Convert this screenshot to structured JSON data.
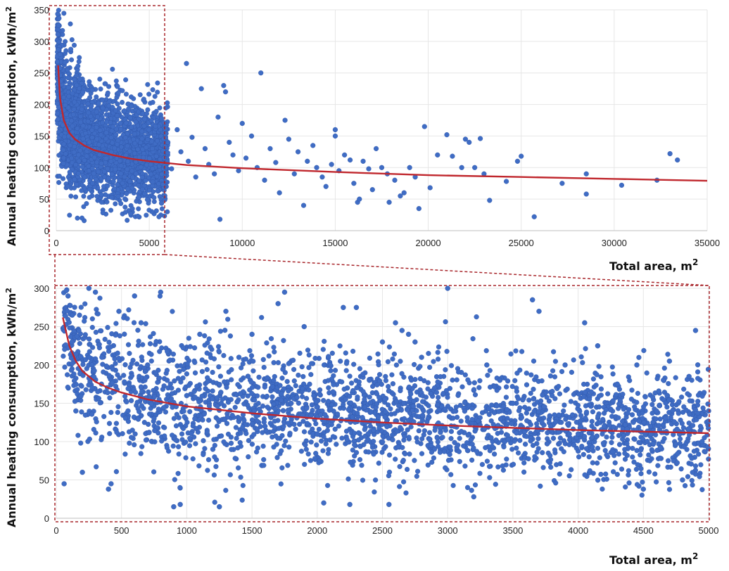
{
  "chart_data": [
    {
      "type": "scatter",
      "title": "",
      "xlabel": "Total area, m",
      "xlabel_sup": "2",
      "ylabel": "Annual heating consumption, kWh/m",
      "ylabel_sup": "2",
      "xlim": [
        0,
        35000
      ],
      "ylim": [
        0,
        350
      ],
      "xticks": [
        "0",
        "5000",
        "10000",
        "15000",
        "20000",
        "25000",
        "30000",
        "35000"
      ],
      "yticks": [
        "0",
        "50",
        "100",
        "150",
        "200",
        "250",
        "300",
        "350"
      ],
      "grid": true,
      "series": [
        {
          "kind": "points",
          "color": "#3f6cc4",
          "points": [
            [
              5800,
              115
            ],
            [
              6000,
              140
            ],
            [
              6200,
              98
            ],
            [
              6500,
              160
            ],
            [
              6700,
              125
            ],
            [
              7000,
              265
            ],
            [
              7100,
              110
            ],
            [
              7300,
              148
            ],
            [
              7500,
              85
            ],
            [
              7800,
              225
            ],
            [
              8000,
              130
            ],
            [
              8200,
              105
            ],
            [
              8500,
              90
            ],
            [
              8700,
              180
            ],
            [
              8800,
              18
            ],
            [
              9000,
              230
            ],
            [
              9100,
              220
            ],
            [
              9300,
              140
            ],
            [
              9500,
              120
            ],
            [
              9800,
              95
            ],
            [
              10000,
              170
            ],
            [
              10200,
              115
            ],
            [
              10500,
              150
            ],
            [
              10800,
              100
            ],
            [
              11000,
              250
            ],
            [
              11200,
              80
            ],
            [
              11500,
              130
            ],
            [
              11800,
              108
            ],
            [
              12000,
              60
            ],
            [
              12300,
              175
            ],
            [
              12500,
              145
            ],
            [
              12800,
              90
            ],
            [
              13000,
              125
            ],
            [
              13300,
              40
            ],
            [
              13500,
              110
            ],
            [
              13800,
              135
            ],
            [
              14000,
              100
            ],
            [
              14300,
              85
            ],
            [
              14500,
              70
            ],
            [
              14800,
              105
            ],
            [
              15000,
              160
            ],
            [
              15000,
              150
            ],
            [
              15200,
              95
            ],
            [
              15500,
              120
            ],
            [
              15800,
              112
            ],
            [
              16000,
              75
            ],
            [
              16200,
              45
            ],
            [
              16300,
              50
            ],
            [
              16500,
              110
            ],
            [
              16800,
              98
            ],
            [
              17000,
              65
            ],
            [
              17200,
              130
            ],
            [
              17500,
              100
            ],
            [
              17800,
              90
            ],
            [
              17900,
              45
            ],
            [
              18200,
              80
            ],
            [
              18500,
              55
            ],
            [
              18700,
              60
            ],
            [
              19000,
              100
            ],
            [
              19300,
              85
            ],
            [
              19500,
              35
            ],
            [
              19800,
              165
            ],
            [
              20100,
              68
            ],
            [
              20500,
              120
            ],
            [
              21000,
              152
            ],
            [
              21300,
              118
            ],
            [
              21800,
              100
            ],
            [
              22000,
              145
            ],
            [
              22200,
              140
            ],
            [
              22500,
              100
            ],
            [
              22800,
              146
            ],
            [
              23000,
              90
            ],
            [
              23300,
              48
            ],
            [
              24200,
              78
            ],
            [
              24800,
              110
            ],
            [
              25000,
              118
            ],
            [
              25700,
              22
            ],
            [
              27200,
              75
            ],
            [
              28500,
              90
            ],
            [
              28500,
              58
            ],
            [
              30400,
              72
            ],
            [
              32300,
              80
            ],
            [
              33000,
              122
            ],
            [
              33400,
              112
            ]
          ],
          "dense_region": {
            "x": [
              50,
              6000
            ],
            "y": [
              15,
              350
            ],
            "note_count": 2600
          }
        },
        {
          "kind": "line",
          "color": "#c0272d",
          "x": [
            100,
            200,
            400,
            700,
            1000,
            1500,
            2000,
            3000,
            4000,
            5000,
            7000,
            10000,
            15000,
            20000,
            25000,
            30000,
            35000
          ],
          "y": [
            262,
            210,
            175,
            155,
            145,
            135,
            128,
            120,
            114,
            110,
            104,
            99,
            93,
            88,
            85,
            82,
            79
          ]
        }
      ]
    },
    {
      "type": "scatter",
      "title": "",
      "xlabel": "Total area, m",
      "xlabel_sup": "2",
      "ylabel": "Annual heating consumption, kWh/m",
      "ylabel_sup": "2",
      "xlim": [
        0,
        5000
      ],
      "ylim": [
        0,
        300
      ],
      "xticks": [
        "0",
        "500",
        "1000",
        "1500",
        "2000",
        "2500",
        "3000",
        "3500",
        "4000",
        "4500",
        "5000"
      ],
      "yticks": [
        "0",
        "50",
        "100",
        "150",
        "200",
        "250",
        "300"
      ],
      "grid": true,
      "series": [
        {
          "kind": "points",
          "color": "#3f6cc4",
          "points": [
            [
              60,
              45
            ],
            [
              90,
              290
            ],
            [
              120,
              230
            ],
            [
              150,
              140
            ],
            [
              200,
              60
            ],
            [
              250,
              300
            ],
            [
              300,
              295
            ],
            [
              350,
              210
            ],
            [
              400,
              38
            ],
            [
              420,
              45
            ],
            [
              480,
              270
            ],
            [
              550,
              140
            ],
            [
              600,
              290
            ],
            [
              650,
              255
            ],
            [
              700,
              200
            ],
            [
              800,
              295
            ],
            [
              850,
              180
            ],
            [
              900,
              15
            ],
            [
              950,
              18
            ],
            [
              1000,
              160
            ],
            [
              1100,
              240
            ],
            [
              1200,
              90
            ],
            [
              1250,
              15
            ],
            [
              1300,
              270
            ],
            [
              1400,
              210
            ],
            [
              1500,
              240
            ],
            [
              1600,
              120
            ],
            [
              1700,
              280
            ],
            [
              1750,
              295
            ],
            [
              1800,
              150
            ],
            [
              1900,
              250
            ],
            [
              2000,
              110
            ],
            [
              2050,
              20
            ],
            [
              2100,
              200
            ],
            [
              2200,
              275
            ],
            [
              2250,
              18
            ],
            [
              2300,
              275
            ],
            [
              2400,
              180
            ],
            [
              2500,
              230
            ],
            [
              2550,
              18
            ],
            [
              2600,
              255
            ],
            [
              2650,
              245
            ],
            [
              2700,
              240
            ],
            [
              2750,
              230
            ],
            [
              2800,
              210
            ],
            [
              2900,
              170
            ],
            [
              3000,
              300
            ],
            [
              3050,
              120
            ],
            [
              3200,
              28
            ],
            [
              3300,
              200
            ],
            [
              3400,
              180
            ],
            [
              3500,
              150
            ],
            [
              3650,
              285
            ],
            [
              3700,
              270
            ],
            [
              3800,
              160
            ],
            [
              3900,
              200
            ],
            [
              4000,
              110
            ],
            [
              4050,
              255
            ],
            [
              4150,
              225
            ],
            [
              4200,
              120
            ],
            [
              4300,
              175
            ],
            [
              4450,
              200
            ],
            [
              4500,
              38
            ],
            [
              4600,
              140
            ],
            [
              4700,
              205
            ],
            [
              4800,
              50
            ],
            [
              4850,
              185
            ],
            [
              4900,
              245
            ],
            [
              4950,
              100
            ],
            [
              5000,
              140
            ]
          ],
          "dense_region": {
            "x": [
              50,
              5000
            ],
            "y": [
              20,
              300
            ],
            "note_count": 2600
          }
        },
        {
          "kind": "line",
          "color": "#c0272d",
          "x": [
            50,
            100,
            150,
            200,
            300,
            400,
            500,
            700,
            1000,
            1500,
            2000,
            2500,
            3000,
            3500,
            4000,
            4500,
            5000
          ],
          "y": [
            262,
            225,
            205,
            192,
            178,
            170,
            164,
            155,
            146,
            137,
            130,
            125,
            121,
            118,
            115,
            113,
            111
          ]
        }
      ]
    }
  ]
}
